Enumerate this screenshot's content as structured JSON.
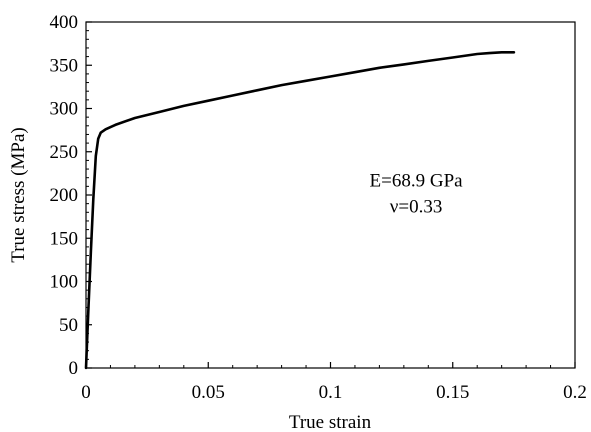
{
  "chart_data": {
    "type": "line",
    "title": "",
    "xlabel": "True strain",
    "ylabel": "True stress (MPa)",
    "xlim": [
      0,
      0.2
    ],
    "ylim": [
      0,
      400
    ],
    "xticks": [
      0,
      0.05,
      0.1,
      0.15,
      0.2
    ],
    "xtick_labels": [
      "0",
      "0.05",
      "0.1",
      "0.15",
      "0.2"
    ],
    "yticks": [
      0,
      50,
      100,
      150,
      200,
      250,
      300,
      350,
      400
    ],
    "ytick_labels": [
      "0",
      "50",
      "100",
      "150",
      "200",
      "250",
      "300",
      "350",
      "400"
    ],
    "grid": false,
    "legend": "none",
    "line_color": "#000000",
    "series": [
      {
        "x": [
          0,
          0.001,
          0.002,
          0.003,
          0.004,
          0.005,
          0.006,
          0.008,
          0.012,
          0.02,
          0.03,
          0.04,
          0.05,
          0.06,
          0.07,
          0.08,
          0.09,
          0.1,
          0.11,
          0.12,
          0.13,
          0.14,
          0.15,
          0.16,
          0.165,
          0.17,
          0.175
        ],
        "y": [
          0,
          68,
          135,
          195,
          245,
          265,
          272,
          276,
          281,
          289,
          296,
          303,
          309,
          315,
          321,
          327,
          332,
          337,
          342,
          347,
          351,
          355,
          359,
          363,
          364,
          365,
          365
        ]
      }
    ],
    "annotations": [
      {
        "text": "E=68.9 GPa",
        "x": 0.135,
        "y": 210
      },
      {
        "text": "ν=0.33",
        "x": 0.135,
        "y": 180
      }
    ]
  }
}
